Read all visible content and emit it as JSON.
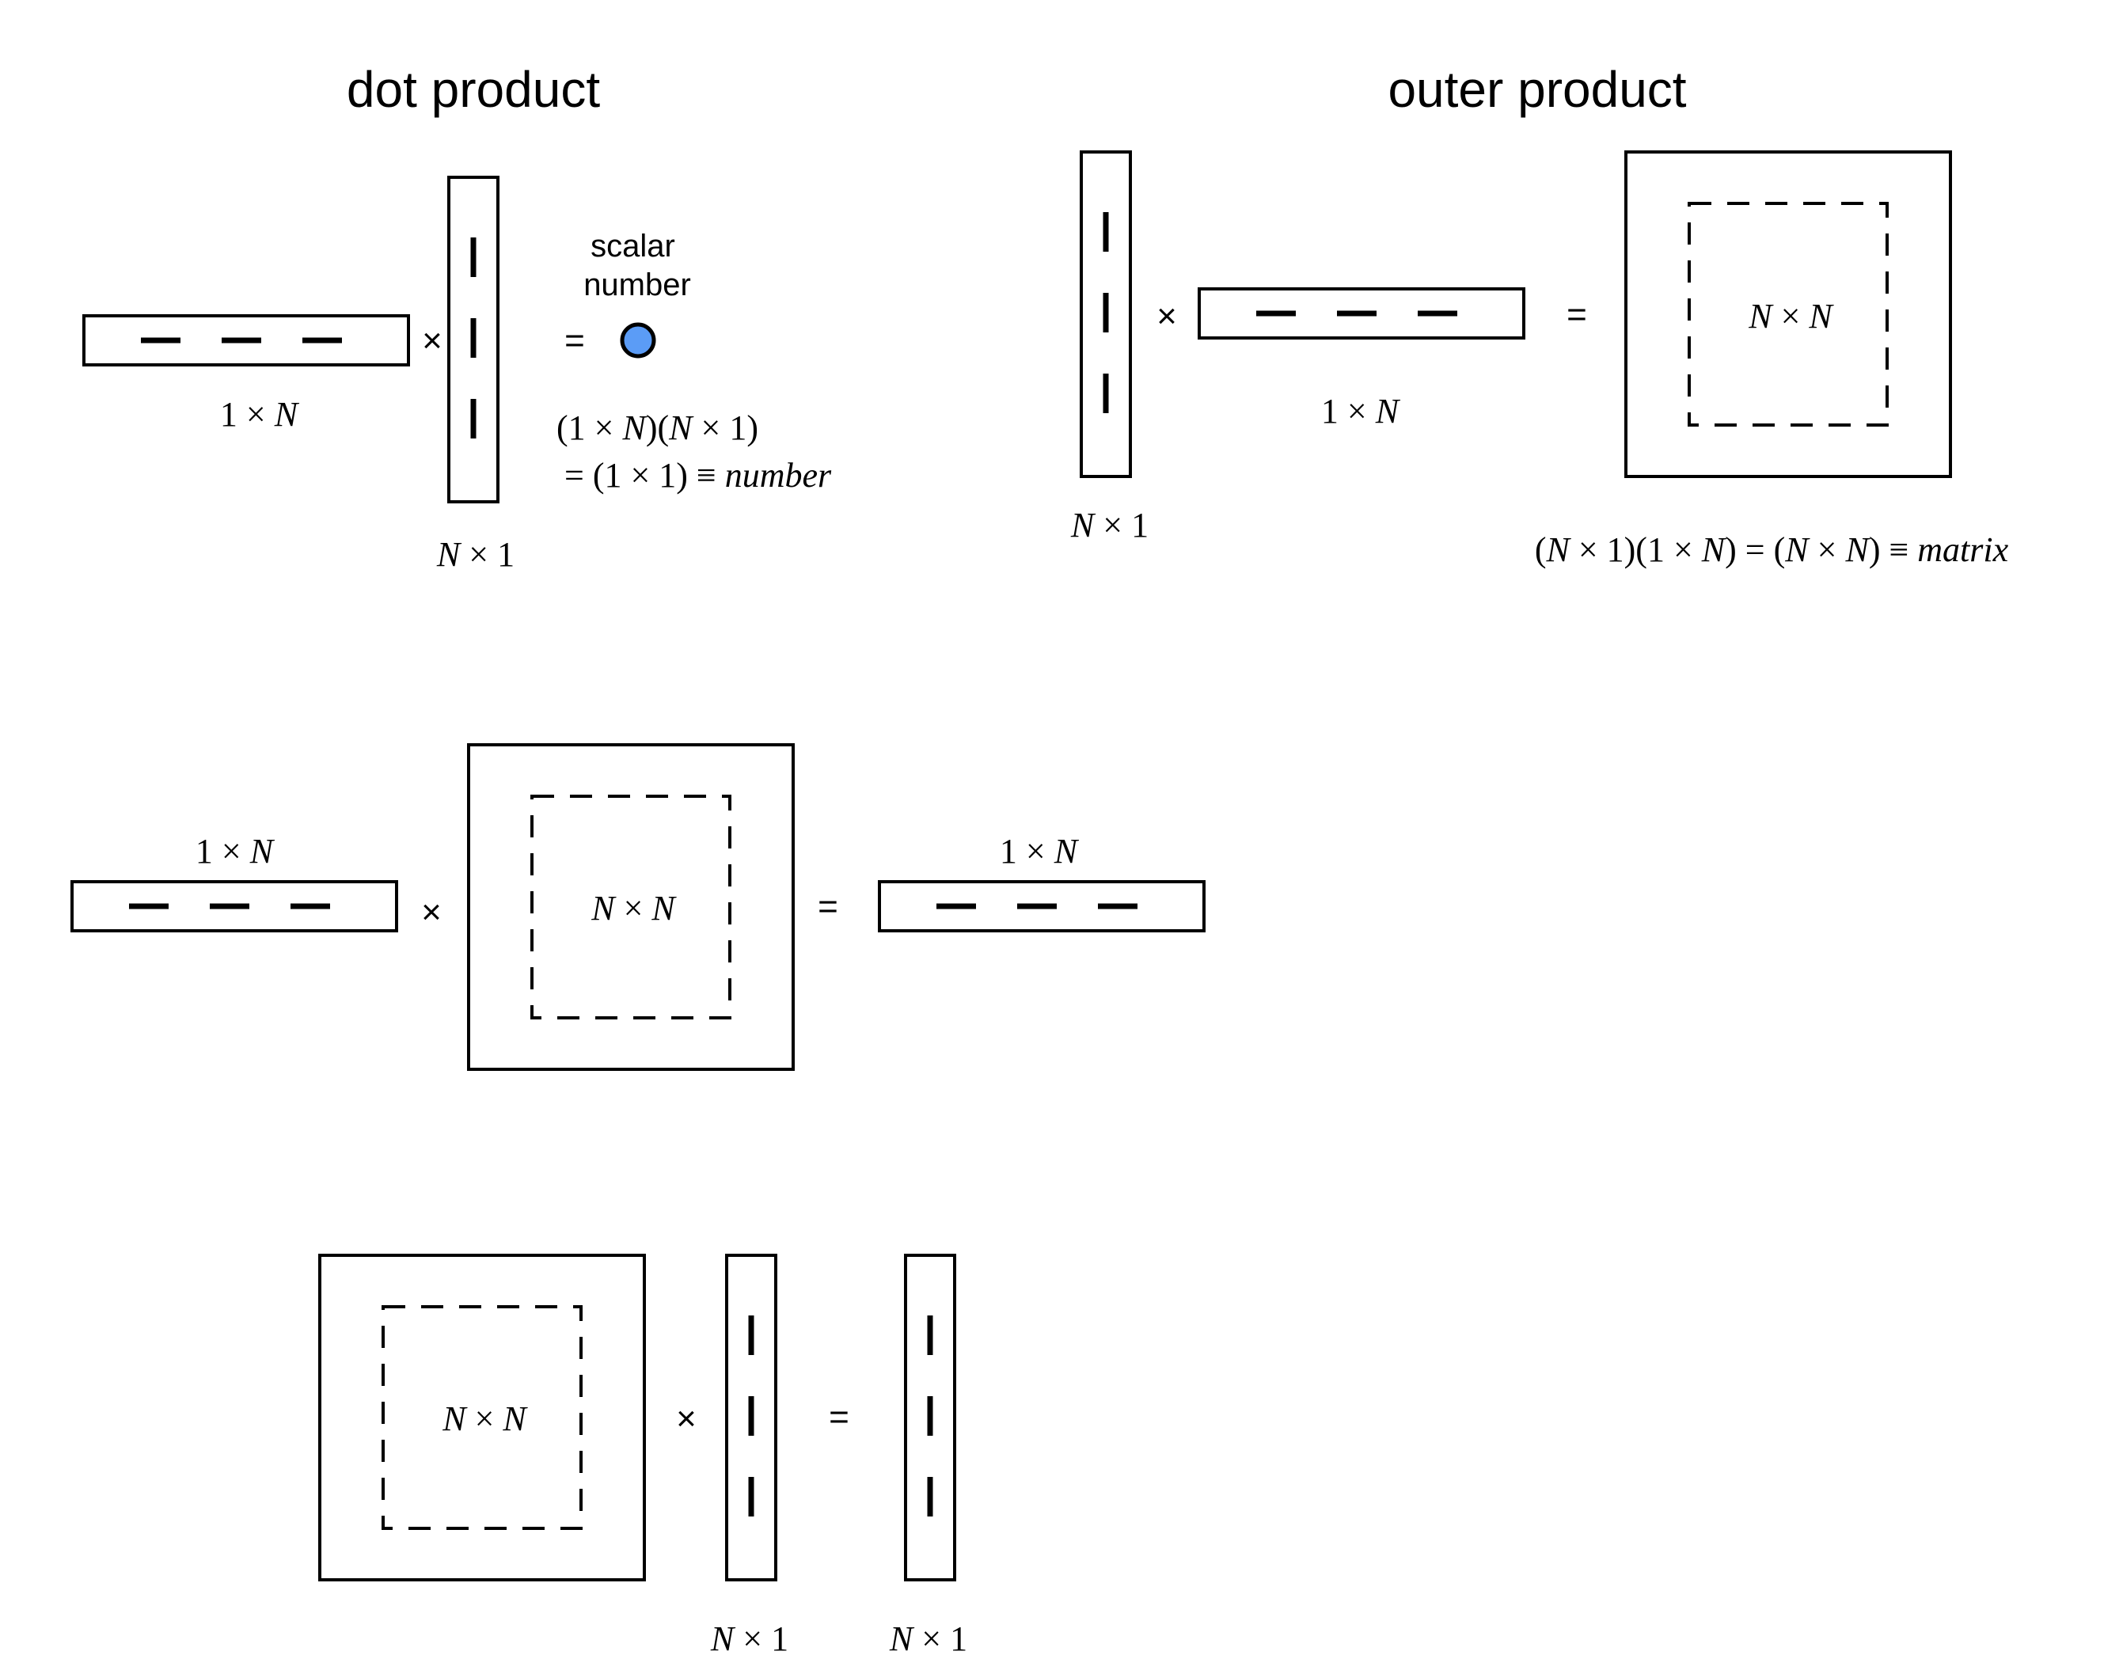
{
  "headings": {
    "dot_product": "dot product",
    "outer_product": "outer product"
  },
  "symbols": {
    "times": "×",
    "equals": "="
  },
  "dims": {
    "row": [
      "1 × ",
      "N"
    ],
    "col": [
      "N",
      " × 1"
    ],
    "square": [
      "N",
      " × ",
      "N"
    ]
  },
  "scalar_label": [
    "scalar",
    "number"
  ],
  "dot_equation": {
    "line1": [
      "(1 × ",
      "N",
      ")(",
      "N",
      " × 1)"
    ],
    "line2": [
      "= (1 × 1) ≡ ",
      "number"
    ]
  },
  "outer_equation": [
    "(",
    "N",
    " × 1)(1 × ",
    "N",
    ") = (",
    "N",
    " × ",
    "N",
    ") ≡ ",
    "matrix"
  ],
  "colors": {
    "scalar_fill": "#5b9cf6",
    "stroke": "#000000"
  }
}
